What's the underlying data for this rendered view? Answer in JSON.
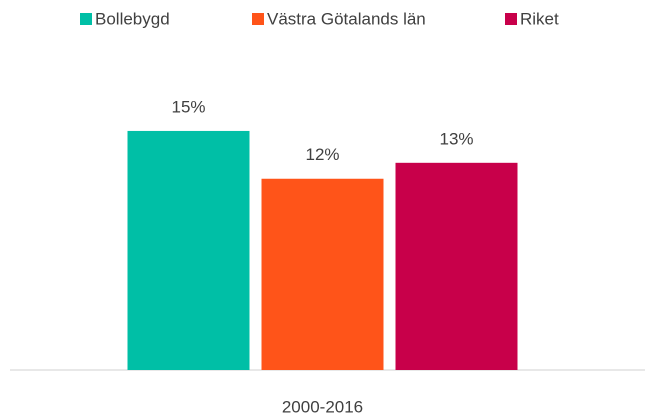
{
  "chart_data": {
    "type": "bar",
    "categories": [
      "2000-2016"
    ],
    "series": [
      {
        "name": "Bollebygd",
        "color": "#00bfa6",
        "values": [
          15
        ],
        "value_labels": [
          "15%"
        ]
      },
      {
        "name": "Västra Götalands län",
        "color": "#ff5419",
        "values": [
          12
        ],
        "value_labels": [
          "12%"
        ]
      },
      {
        "name": "Riket",
        "color": "#c8004a",
        "values": [
          13
        ],
        "value_labels": [
          "13%"
        ]
      }
    ],
    "ylim": [
      0,
      16
    ],
    "legend": "top"
  }
}
